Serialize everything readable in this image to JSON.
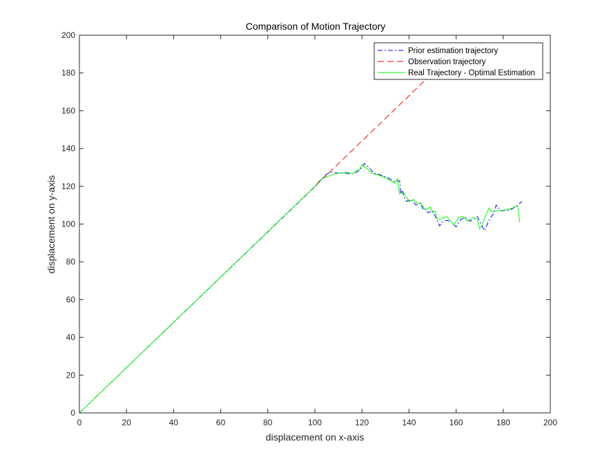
{
  "chart_data": {
    "type": "line",
    "title": "Comparison of Motion Trajectory",
    "xlabel": "displacement on x-axis",
    "ylabel": "displacement on y-axis",
    "xlim": [
      0,
      200
    ],
    "ylim": [
      0,
      200
    ],
    "xticks": [
      "0",
      "20",
      "40",
      "60",
      "80",
      "100",
      "120",
      "140",
      "160",
      "180",
      "200"
    ],
    "yticks": [
      "0",
      "20",
      "40",
      "60",
      "80",
      "100",
      "120",
      "140",
      "160",
      "180",
      "200"
    ],
    "grid": false,
    "legend_position": "top-right",
    "series": [
      {
        "name": "Prior estimation trajectory",
        "color": "#0000ff",
        "style": "dash-dot",
        "points": [
          [
            0,
            0
          ],
          [
            101,
            121
          ],
          [
            103,
            124
          ],
          [
            105,
            126.5
          ],
          [
            107,
            127.5
          ],
          [
            110,
            127
          ],
          [
            113,
            127
          ],
          [
            115,
            126.5
          ],
          [
            117,
            127
          ],
          [
            119,
            128.5
          ],
          [
            121,
            132
          ],
          [
            123,
            130
          ],
          [
            125,
            127
          ],
          [
            128,
            126
          ],
          [
            131,
            124.5
          ],
          [
            134,
            122.5
          ],
          [
            136,
            123
          ],
          [
            136.5,
            116
          ],
          [
            137,
            118
          ],
          [
            138,
            114
          ],
          [
            139,
            112
          ],
          [
            141,
            113
          ],
          [
            143,
            110
          ],
          [
            145,
            111
          ],
          [
            146,
            107.5
          ],
          [
            147,
            108
          ],
          [
            148,
            106
          ],
          [
            150,
            107
          ],
          [
            151,
            104.5
          ],
          [
            153,
            99
          ],
          [
            154,
            101
          ],
          [
            156,
            102
          ],
          [
            158,
            101
          ],
          [
            160,
            98.5
          ],
          [
            162,
            102.5
          ],
          [
            164,
            103.5
          ],
          [
            166,
            101.5
          ],
          [
            168,
            103
          ],
          [
            169,
            104
          ],
          [
            171,
            99
          ],
          [
            172,
            96.5
          ],
          [
            174,
            102
          ],
          [
            176,
            106
          ],
          [
            177,
            110
          ],
          [
            179,
            107
          ],
          [
            183,
            107.5
          ],
          [
            185,
            109
          ],
          [
            188,
            112
          ]
        ]
      },
      {
        "name": "Observation trajectory",
        "color": "#ff0000",
        "style": "dashed",
        "points": [
          [
            100,
            120
          ],
          [
            155,
            186
          ]
        ]
      },
      {
        "name": "Real Trajectory - Optimal Estimation",
        "color": "#00ff00",
        "style": "solid",
        "points": [
          [
            0,
            0
          ],
          [
            100,
            120
          ],
          [
            102,
            123
          ],
          [
            104,
            124.5
          ],
          [
            107,
            126
          ],
          [
            110,
            127
          ],
          [
            114,
            127.5
          ],
          [
            116,
            126.5
          ],
          [
            117,
            128
          ],
          [
            119,
            129
          ],
          [
            120,
            131.5
          ],
          [
            122,
            129.5
          ],
          [
            124,
            127
          ],
          [
            127,
            126
          ],
          [
            130,
            124.5
          ],
          [
            134,
            121.5
          ],
          [
            135,
            124
          ],
          [
            136,
            116
          ],
          [
            137.5,
            117
          ],
          [
            138.5,
            115
          ],
          [
            140,
            112
          ],
          [
            142,
            113
          ],
          [
            143.5,
            111
          ],
          [
            145,
            111
          ],
          [
            146,
            109
          ],
          [
            147,
            107.5
          ],
          [
            149,
            109
          ],
          [
            150,
            106
          ],
          [
            151,
            107
          ],
          [
            152,
            103
          ],
          [
            153,
            102.5
          ],
          [
            155,
            103.5
          ],
          [
            156,
            104
          ],
          [
            158,
            101
          ],
          [
            159,
            99.5
          ],
          [
            161,
            103.5
          ],
          [
            163,
            104
          ],
          [
            165,
            101.5
          ],
          [
            167,
            103.5
          ],
          [
            169,
            102.5
          ],
          [
            170,
            97.5
          ],
          [
            171,
            99.5
          ],
          [
            172,
            103
          ],
          [
            174,
            108.5
          ],
          [
            175,
            106.5
          ],
          [
            178,
            107
          ],
          [
            181,
            107.5
          ],
          [
            184,
            108.5
          ],
          [
            186,
            110
          ],
          [
            187,
            101
          ]
        ]
      }
    ]
  }
}
